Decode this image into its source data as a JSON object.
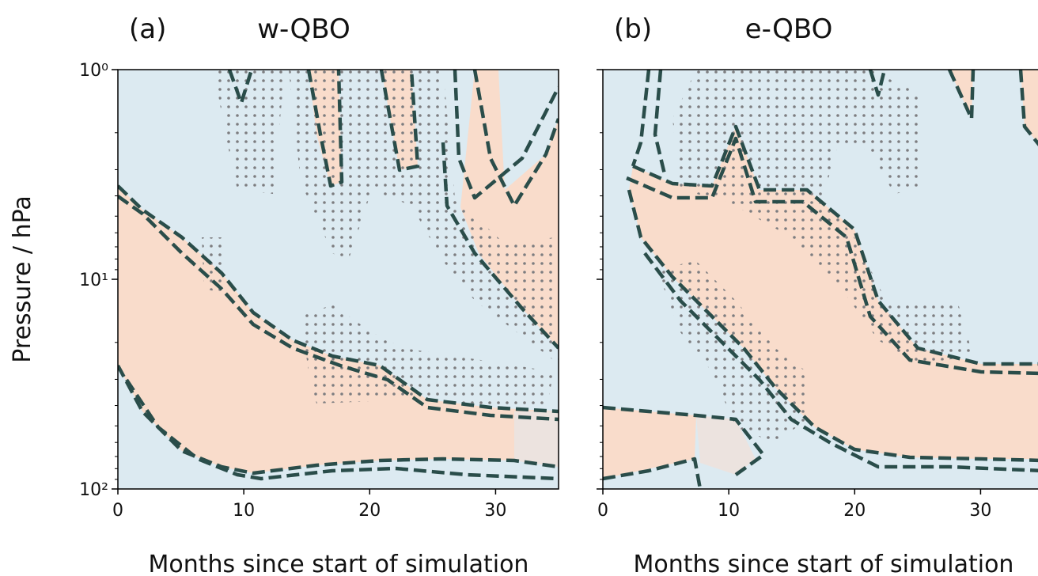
{
  "chart_data": [
    {
      "type": "contour",
      "panel_label": "(a)",
      "title": "w-QBO",
      "xlabel": "Months since start of simulation",
      "ylabel": "Pressure / hPa",
      "xlim": [
        0,
        35
      ],
      "xticks": [
        0,
        10,
        20,
        30
      ],
      "ylim": [
        100,
        1
      ],
      "yscale": "log",
      "yticks": [
        {
          "value": 1,
          "label": "10⁰"
        },
        {
          "value": 10,
          "label": "10¹"
        },
        {
          "value": 100,
          "label": "10²"
        }
      ],
      "yminorticks": [
        2,
        3,
        4,
        5,
        6,
        7,
        8,
        9,
        20,
        30,
        40,
        50,
        60,
        70,
        80,
        90
      ],
      "yticklabels": true
    },
    {
      "type": "contour",
      "panel_label": "(b)",
      "title": "e-QBO",
      "xlabel": "Months since start of simulation",
      "xlim": [
        0,
        35
      ],
      "xticks": [
        0,
        10,
        20,
        30
      ],
      "ylim": [
        100,
        1
      ],
      "yscale": "log",
      "yticks": [
        {
          "value": 1,
          "label": "10⁰"
        },
        {
          "value": 10,
          "label": "10¹"
        },
        {
          "value": 100,
          "label": "10²"
        }
      ],
      "yminorticks": [
        2,
        3,
        4,
        5,
        6,
        7,
        8,
        9,
        20,
        30,
        40,
        50,
        60,
        70,
        80,
        90
      ],
      "yticklabels": false
    }
  ]
}
